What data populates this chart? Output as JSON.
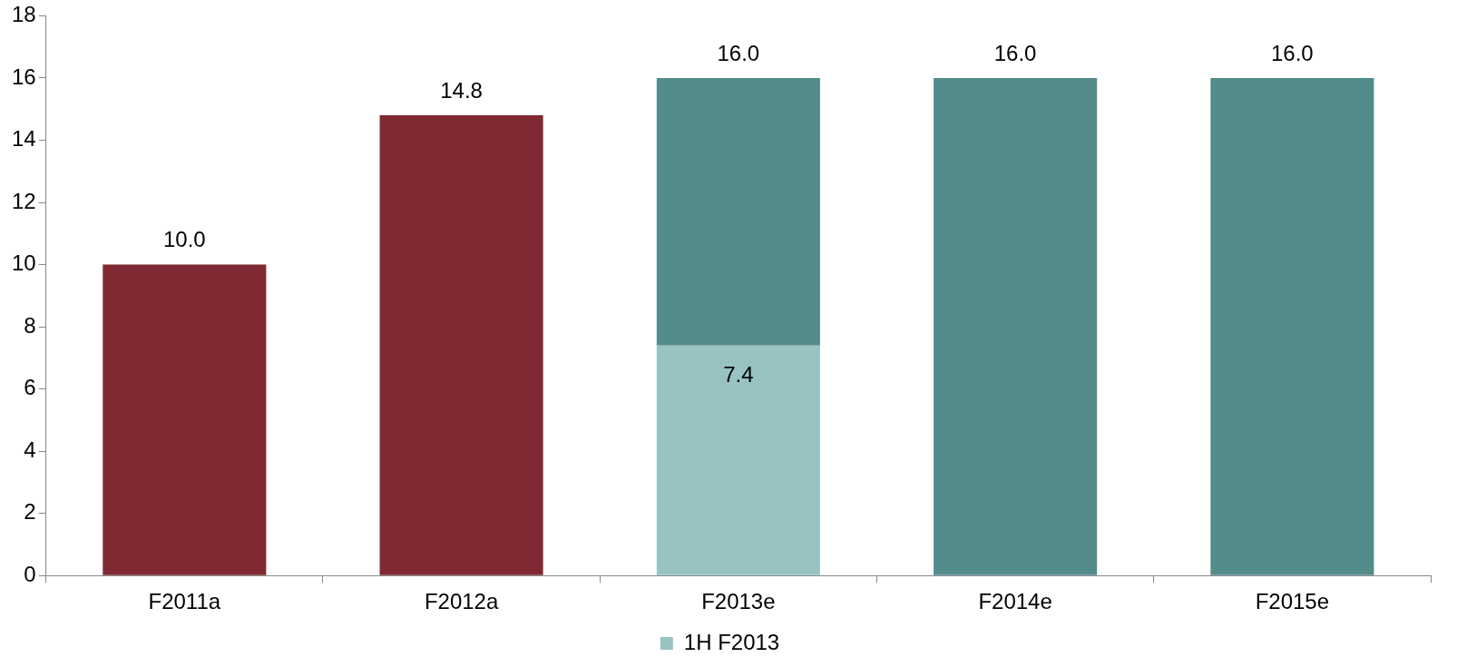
{
  "chart_data": {
    "type": "bar",
    "categories": [
      "F2011a",
      "F2012a",
      "F2013e",
      "F2014e",
      "F2015e"
    ],
    "stacked": true,
    "series": [
      {
        "color": "#7f2a33",
        "values": [
          10.0,
          14.8,
          null,
          null,
          null
        ]
      },
      {
        "name": "1H F2013",
        "color": "#99c3c3",
        "values": [
          null,
          null,
          7.4,
          null,
          null
        ],
        "value_labels": [
          null,
          null,
          "7.4",
          null,
          null
        ]
      },
      {
        "color": "#548c8c",
        "values": [
          null,
          null,
          8.6,
          16.0,
          16.0
        ]
      }
    ],
    "totals": [
      "10.0",
      "14.8",
      "16.0",
      "16.0",
      "16.0"
    ],
    "ylim": [
      0,
      18
    ],
    "yticks": [
      0,
      2,
      4,
      6,
      8,
      10,
      12,
      14,
      16,
      18
    ],
    "legend": "bottom"
  }
}
